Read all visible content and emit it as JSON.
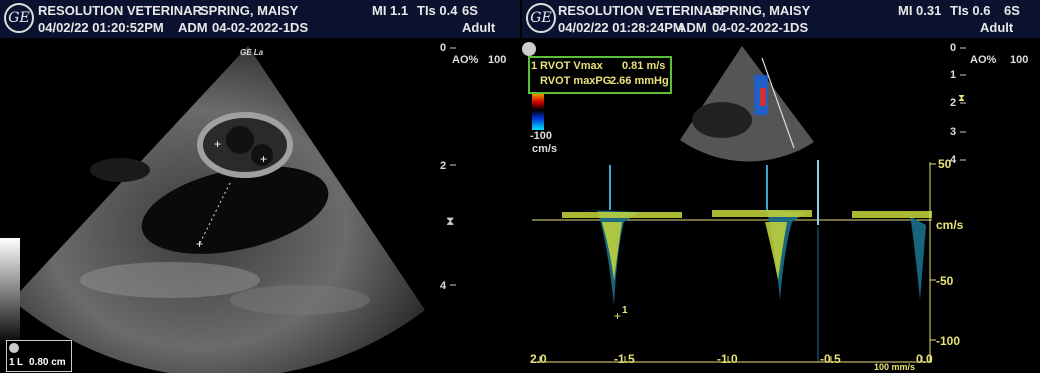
{
  "left": {
    "logo": "GE",
    "facility": "RESOLUTION VETERINAR",
    "patient": "SPRING, MAISY",
    "datetime": "04/02/22 01:20:52PM",
    "operator": "ADM",
    "exam_id": "04-02-2022-1DS",
    "mi": "MI 1.1",
    "tis": "TIs 0.4",
    "probe": "6S",
    "preset": "Adult",
    "ao_label": "AO%",
    "ao_value": "100",
    "probe_mark": "GE\nLa",
    "depth_ticks": [
      "0",
      "2",
      "4"
    ],
    "measurement": {
      "index": "1",
      "label": "L",
      "value": "0.80 cm"
    }
  },
  "right": {
    "logo": "GE",
    "facility": "RESOLUTION VETERINAR",
    "patient": "SPRING, MAISY",
    "datetime": "04/02/22 01:28:24PM",
    "operator": "ADM",
    "exam_id": "04-02-2022-1DS",
    "mi": "MI 0.31",
    "tis": "TIs 0.6",
    "probe": "6S",
    "preset": "Adult",
    "ao_label": "AO%",
    "ao_value": "100",
    "depth_ticks": [
      "0",
      "1",
      "2",
      "3",
      "4"
    ],
    "color_scale": {
      "top": "100",
      "bottom": "-100",
      "unit": "cm/s"
    },
    "measurements": [
      {
        "index": "1",
        "label": "RVOT Vmax",
        "value": "0.81 m/s"
      },
      {
        "index": "",
        "label": "RVOT maxPG",
        "value": "2.66 mmHg"
      }
    ],
    "velocity_axis": {
      "ticks": [
        "50",
        "cm/s",
        "-50",
        "-100"
      ]
    },
    "time_axis": {
      "ticks": [
        "2.0",
        "-1.5",
        "-1.0",
        "-0.5",
        "0.0"
      ],
      "sweep": "100 mm/s"
    },
    "cursor_label": "1"
  },
  "colors": {
    "header_bg": "#0b1230",
    "annotation_yellow": "#e8e27a",
    "measure_box_border": "#5bbf3a"
  }
}
